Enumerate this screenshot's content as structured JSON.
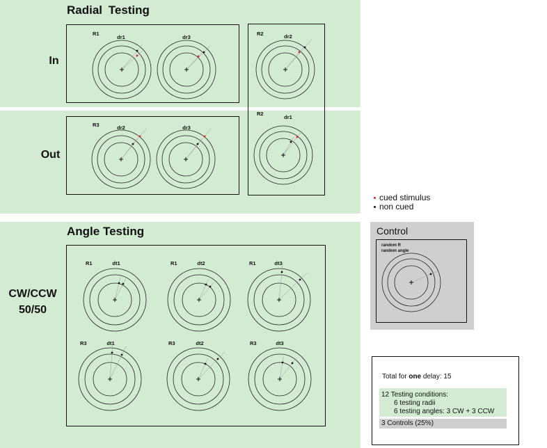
{
  "radial": {
    "title": "Radial Testing",
    "row_in": "In",
    "row_out": "Out",
    "in_group": {
      "r_label": "R1",
      "stim1": "dr1",
      "stim2": "dr3"
    },
    "out_group": {
      "r_label": "R3",
      "stim1": "dr2",
      "stim2": "dr3"
    },
    "r2_group": {
      "r_label_top": "R2",
      "stim_top": "dr2",
      "r_label_bottom": "R2",
      "stim_bottom": "dr1"
    }
  },
  "angle": {
    "title": "Angle Testing",
    "row_label_line1": "CW/CCW",
    "row_label_line2": "50/50",
    "cells": [
      {
        "r": "R1",
        "d": "dt1"
      },
      {
        "r": "R1",
        "d": "dt2"
      },
      {
        "r": "R1",
        "d": "dt3"
      },
      {
        "r": "R3",
        "d": "dt1"
      },
      {
        "r": "R3",
        "d": "dt2"
      },
      {
        "r": "R3",
        "d": "dt3"
      }
    ]
  },
  "legend": {
    "cued": "cued stimulus",
    "non_cued": "non cued",
    "cued_color": "#e02020",
    "non_cued_color": "#111111"
  },
  "control": {
    "title": "Control",
    "line1": "random R",
    "line2": "random angle"
  },
  "summary": {
    "total_prefix": "Total for ",
    "total_bold": "one",
    "total_suffix": " delay: 15",
    "testing_conditions": "12 Testing conditions:",
    "testing_radii": "6 testing radii",
    "testing_angles": "6 testing angles: 3 CW + 3 CCW",
    "controls": "3 Controls (25%)"
  }
}
